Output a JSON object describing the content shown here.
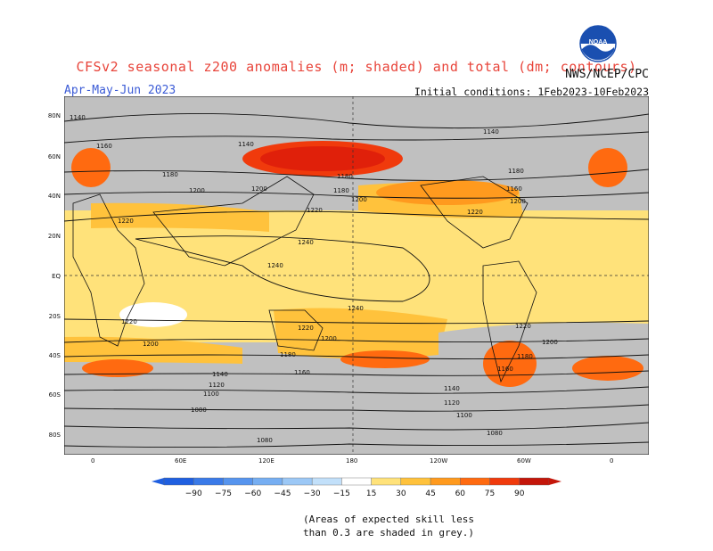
{
  "header": {
    "title": "CFSv2 seasonal z200 anomalies (m; shaded) and total (dm; contours)",
    "season": "Apr-May-Jun 2023",
    "agency": "NWS/NCEP/CPC",
    "initial_conditions": "Initial conditions: 1Feb2023-10Feb2023",
    "logo_text": "NOAA"
  },
  "map": {
    "projection": "cylindrical equidistant",
    "lat_labels": [
      "80N",
      "60N",
      "40N",
      "20N",
      "EQ",
      "20S",
      "40S",
      "60S",
      "80S"
    ],
    "lon_labels": [
      "0",
      "60E",
      "120E",
      "180",
      "120W",
      "60W",
      "0"
    ],
    "contour_labels": [
      {
        "text": "1140"
      },
      {
        "text": "1160"
      },
      {
        "text": "1140"
      },
      {
        "text": "1180"
      },
      {
        "text": "1200"
      },
      {
        "text": "1180"
      },
      {
        "text": "1180"
      },
      {
        "text": "1200"
      },
      {
        "text": "1220"
      },
      {
        "text": "1220"
      },
      {
        "text": "1220"
      },
      {
        "text": "1240"
      },
      {
        "text": "1240"
      },
      {
        "text": "1240"
      },
      {
        "text": "1140"
      },
      {
        "text": "1180"
      },
      {
        "text": "1160"
      },
      {
        "text": "1200"
      },
      {
        "text": "1220"
      },
      {
        "text": "1220"
      },
      {
        "text": "1200"
      },
      {
        "text": "1220"
      },
      {
        "text": "1200"
      },
      {
        "text": "1200"
      },
      {
        "text": "1180"
      },
      {
        "text": "1160"
      },
      {
        "text": "1180"
      },
      {
        "text": "1160"
      },
      {
        "text": "1140"
      },
      {
        "text": "1120"
      },
      {
        "text": "1100"
      },
      {
        "text": "1140"
      },
      {
        "text": "1120"
      },
      {
        "text": "1100"
      },
      {
        "text": "1080"
      },
      {
        "text": "1080"
      },
      {
        "text": "1080"
      },
      {
        "text": "1200"
      }
    ],
    "colors": {
      "grey_low_skill": "#c0c0c0",
      "neutral": "#ffffff"
    }
  },
  "colorbar": {
    "ticks": [
      "−90",
      "−75",
      "−60",
      "−45",
      "−30",
      "−15",
      "15",
      "30",
      "45",
      "60",
      "75",
      "90"
    ],
    "colors": [
      "#1f5fe0",
      "#3a7ae8",
      "#5694ee",
      "#76aef2",
      "#9cc8f6",
      "#c2e0fa",
      "#ffffff",
      "#ffe27a",
      "#ffc23c",
      "#ff9a1e",
      "#ff6a10",
      "#f03a0c",
      "#c4160a"
    ]
  },
  "footnote": {
    "line1": "(Areas of expected skill less",
    "line2": "than 0.3 are shaded in grey.)"
  }
}
